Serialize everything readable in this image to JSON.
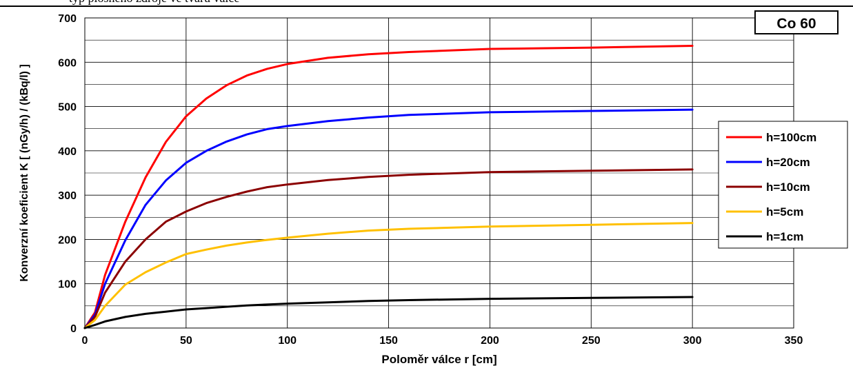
{
  "page": {
    "top_text": "typ plošného zdroje ve tvaru válce"
  },
  "chart_data": {
    "type": "line",
    "title": "",
    "annotation": "Co 60",
    "xlabel": "Poloměr válce r [cm]",
    "ylabel": "Konverzní koeficient K [ (nGy/h) / (kBq/l) ]",
    "xlim": [
      0,
      350
    ],
    "ylim": [
      0,
      700
    ],
    "x_ticks": [
      0,
      50,
      100,
      150,
      200,
      250,
      300,
      350
    ],
    "y_ticks": [
      0,
      100,
      200,
      300,
      400,
      500,
      600,
      700
    ],
    "grid": true,
    "legend_position": "right",
    "series": [
      {
        "name": "h=100cm",
        "color": "#ff0000",
        "x": [
          0,
          5,
          10,
          20,
          30,
          40,
          50,
          60,
          70,
          80,
          90,
          100,
          120,
          140,
          160,
          200,
          250,
          300
        ],
        "y": [
          0,
          35,
          120,
          240,
          340,
          420,
          478,
          518,
          548,
          570,
          585,
          596,
          610,
          618,
          623,
          630,
          633,
          637
        ]
      },
      {
        "name": "h=20cm",
        "color": "#0000ff",
        "x": [
          0,
          5,
          10,
          20,
          30,
          40,
          50,
          60,
          70,
          80,
          90,
          100,
          120,
          140,
          160,
          200,
          250,
          300
        ],
        "y": [
          0,
          30,
          100,
          198,
          278,
          333,
          373,
          400,
          421,
          437,
          449,
          456,
          467,
          475,
          481,
          487,
          490,
          493
        ]
      },
      {
        "name": "h=10cm",
        "color": "#8b0000",
        "x": [
          0,
          5,
          10,
          20,
          30,
          40,
          50,
          60,
          70,
          80,
          90,
          100,
          120,
          140,
          160,
          200,
          250,
          300
        ],
        "y": [
          0,
          25,
          80,
          150,
          200,
          240,
          263,
          282,
          296,
          308,
          318,
          324,
          334,
          341,
          346,
          352,
          355,
          358
        ]
      },
      {
        "name": "h=5cm",
        "color": "#ffc000",
        "x": [
          0,
          5,
          10,
          20,
          30,
          40,
          50,
          60,
          70,
          80,
          90,
          100,
          120,
          140,
          160,
          200,
          250,
          300
        ],
        "y": [
          0,
          18,
          50,
          98,
          126,
          148,
          167,
          177,
          186,
          193,
          199,
          204,
          213,
          220,
          224,
          229,
          233,
          237
        ]
      },
      {
        "name": "h=1cm",
        "color": "#000000",
        "x": [
          0,
          5,
          10,
          20,
          30,
          40,
          50,
          60,
          70,
          80,
          90,
          100,
          120,
          140,
          160,
          200,
          250,
          300
        ],
        "y": [
          0,
          7,
          15,
          25,
          32,
          37,
          42,
          45,
          48,
          51,
          53,
          55,
          58,
          61,
          63,
          66,
          68,
          70
        ]
      }
    ]
  }
}
